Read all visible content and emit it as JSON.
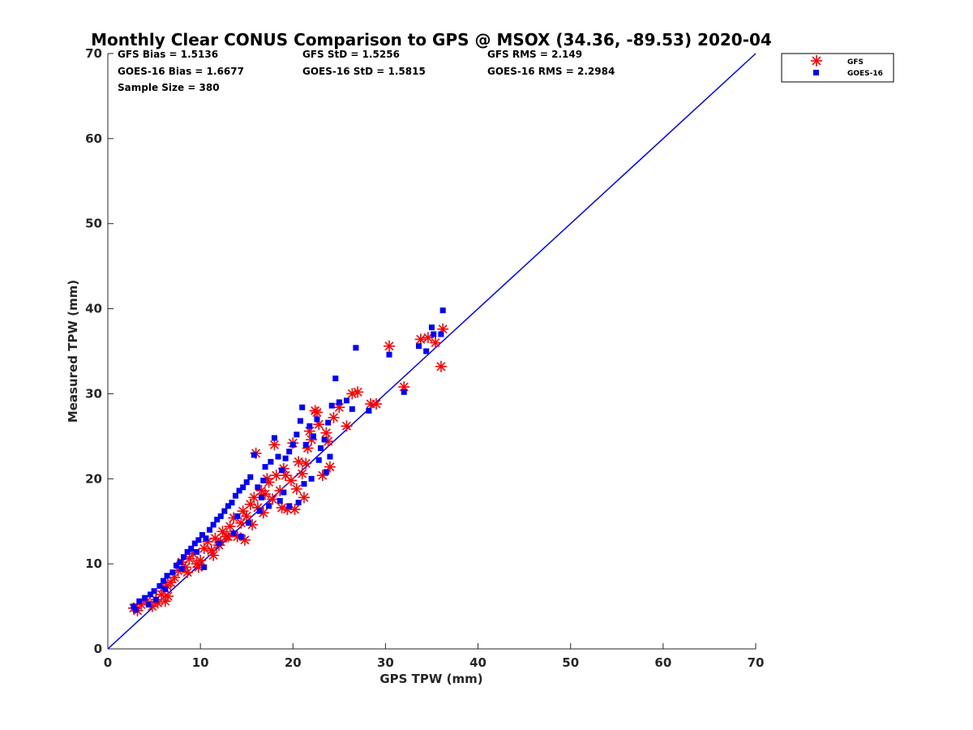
{
  "chart_data": {
    "type": "scatter",
    "title": "Monthly Clear CONUS Comparison to GPS @ MSOX (34.36, -89.53) 2020-04",
    "xlabel": "GPS TPW (mm)",
    "ylabel": "Measured TPW (mm)",
    "xlim": [
      0,
      70
    ],
    "ylim": [
      0,
      70
    ],
    "xticks": [
      "0",
      "10",
      "20",
      "30",
      "40",
      "50",
      "60",
      "70"
    ],
    "yticks": [
      "0",
      "10",
      "20",
      "30",
      "40",
      "50",
      "60",
      "70"
    ],
    "grid": false,
    "legend_position": "top-right",
    "stats": [
      [
        "GFS Bias = 1.5136",
        "GFS StD = 1.5256",
        "GFS RMS = 2.149"
      ],
      [
        "GOES-16 Bias = 1.6677",
        "GOES-16 StD = 1.5815",
        "GOES-16 RMS = 2.2984"
      ],
      [
        "Sample Size = 380"
      ]
    ],
    "reference_line": {
      "x": [
        0,
        70
      ],
      "y": [
        0,
        70
      ],
      "color": "#0000ff"
    },
    "series": [
      {
        "name": "GFS",
        "marker": "asterisk",
        "color": "#ff0000",
        "points": [
          [
            2.8,
            4.8
          ],
          [
            3.2,
            4.5
          ],
          [
            3.6,
            5.2
          ],
          [
            4.2,
            5.6
          ],
          [
            4.8,
            5.0
          ],
          [
            5.2,
            5.8
          ],
          [
            5.8,
            6.4
          ],
          [
            6.2,
            5.6
          ],
          [
            6.5,
            6.2
          ],
          [
            6.0,
            7.2
          ],
          [
            6.8,
            7.8
          ],
          [
            7.2,
            8.4
          ],
          [
            7.6,
            9.2
          ],
          [
            8.0,
            10.2
          ],
          [
            8.4,
            9.6
          ],
          [
            8.8,
            10.6
          ],
          [
            9.2,
            11.2
          ],
          [
            9.6,
            10.0
          ],
          [
            10.0,
            10.4
          ],
          [
            10.4,
            11.8
          ],
          [
            10.8,
            12.6
          ],
          [
            11.2,
            11.6
          ],
          [
            11.6,
            13.0
          ],
          [
            12.0,
            12.2
          ],
          [
            12.4,
            13.8
          ],
          [
            12.8,
            13.2
          ],
          [
            13.2,
            14.4
          ],
          [
            13.6,
            15.4
          ],
          [
            14.0,
            13.2
          ],
          [
            14.4,
            14.8
          ],
          [
            14.6,
            16.2
          ],
          [
            15.0,
            15.6
          ],
          [
            15.4,
            17.0
          ],
          [
            15.8,
            17.8
          ],
          [
            16.2,
            16.6
          ],
          [
            16.6,
            18.6
          ],
          [
            17.0,
            18.2
          ],
          [
            17.4,
            19.6
          ],
          [
            17.8,
            17.6
          ],
          [
            18.2,
            20.4
          ],
          [
            18.6,
            18.6
          ],
          [
            19.0,
            21.2
          ],
          [
            19.4,
            16.4
          ],
          [
            19.8,
            19.8
          ],
          [
            20.2,
            16.4
          ],
          [
            20.6,
            22.0
          ],
          [
            21.0,
            20.6
          ],
          [
            21.2,
            17.8
          ],
          [
            21.6,
            23.6
          ],
          [
            22.0,
            24.6
          ],
          [
            22.4,
            28.0
          ],
          [
            22.8,
            26.4
          ],
          [
            23.2,
            20.4
          ],
          [
            23.6,
            25.4
          ],
          [
            24.0,
            21.4
          ],
          [
            24.4,
            27.2
          ],
          [
            25.0,
            28.4
          ],
          [
            25.8,
            26.2
          ],
          [
            26.4,
            30.0
          ],
          [
            27.0,
            30.2
          ],
          [
            28.4,
            28.8
          ],
          [
            29.0,
            28.8
          ],
          [
            30.4,
            35.6
          ],
          [
            32.0,
            30.8
          ],
          [
            33.8,
            36.4
          ],
          [
            34.6,
            36.6
          ],
          [
            35.4,
            36.0
          ],
          [
            36.2,
            37.6
          ],
          [
            36.0,
            33.2
          ],
          [
            16.0,
            23.0
          ],
          [
            18.0,
            24.0
          ],
          [
            20.0,
            24.2
          ],
          [
            21.8,
            25.6
          ],
          [
            22.6,
            27.8
          ],
          [
            14.8,
            12.8
          ],
          [
            13.0,
            13.2
          ],
          [
            12.2,
            12.6
          ],
          [
            11.4,
            11.0
          ],
          [
            9.8,
            9.6
          ],
          [
            8.6,
            9.0
          ],
          [
            15.6,
            14.6
          ],
          [
            16.8,
            16.0
          ],
          [
            17.2,
            20.0
          ],
          [
            19.2,
            20.4
          ],
          [
            21.4,
            21.8
          ],
          [
            23.8,
            24.4
          ],
          [
            20.4,
            18.8
          ],
          [
            18.8,
            16.6
          ],
          [
            6.4,
            7.4
          ],
          [
            5.4,
            5.4
          ]
        ]
      },
      {
        "name": "GOES-16",
        "marker": "square",
        "color": "#0000ff",
        "points": [
          [
            2.8,
            5.0
          ],
          [
            3.4,
            5.6
          ],
          [
            4.0,
            6.0
          ],
          [
            4.6,
            6.4
          ],
          [
            5.0,
            6.8
          ],
          [
            5.6,
            7.4
          ],
          [
            6.0,
            8.0
          ],
          [
            6.4,
            8.6
          ],
          [
            7.0,
            9.0
          ],
          [
            7.4,
            9.8
          ],
          [
            7.8,
            10.2
          ],
          [
            8.2,
            10.8
          ],
          [
            8.6,
            11.4
          ],
          [
            9.0,
            11.8
          ],
          [
            9.4,
            12.4
          ],
          [
            9.8,
            12.8
          ],
          [
            10.2,
            13.4
          ],
          [
            10.6,
            13.0
          ],
          [
            11.0,
            14.0
          ],
          [
            11.4,
            14.6
          ],
          [
            11.8,
            15.2
          ],
          [
            12.2,
            15.6
          ],
          [
            12.6,
            16.2
          ],
          [
            13.0,
            16.8
          ],
          [
            13.4,
            17.2
          ],
          [
            13.8,
            18.0
          ],
          [
            14.2,
            18.6
          ],
          [
            14.6,
            19.0
          ],
          [
            15.0,
            19.6
          ],
          [
            15.4,
            20.2
          ],
          [
            15.8,
            22.8
          ],
          [
            16.2,
            19.0
          ],
          [
            16.6,
            17.8
          ],
          [
            17.0,
            21.4
          ],
          [
            17.6,
            22.0
          ],
          [
            18.0,
            24.8
          ],
          [
            18.4,
            22.6
          ],
          [
            18.8,
            21.0
          ],
          [
            19.2,
            22.4
          ],
          [
            19.6,
            23.2
          ],
          [
            20.0,
            24.0
          ],
          [
            20.4,
            25.2
          ],
          [
            20.8,
            26.8
          ],
          [
            21.0,
            28.4
          ],
          [
            21.4,
            24.0
          ],
          [
            21.8,
            26.2
          ],
          [
            22.2,
            25.0
          ],
          [
            22.6,
            27.0
          ],
          [
            23.0,
            23.6
          ],
          [
            23.4,
            24.6
          ],
          [
            23.8,
            26.6
          ],
          [
            24.2,
            28.6
          ],
          [
            24.6,
            31.8
          ],
          [
            25.0,
            29.0
          ],
          [
            25.8,
            29.2
          ],
          [
            26.4,
            28.2
          ],
          [
            26.8,
            35.4
          ],
          [
            28.2,
            28.0
          ],
          [
            30.4,
            34.6
          ],
          [
            32.0,
            30.2
          ],
          [
            33.6,
            35.6
          ],
          [
            34.4,
            35.0
          ],
          [
            35.0,
            37.8
          ],
          [
            35.2,
            37.0
          ],
          [
            36.2,
            39.8
          ],
          [
            36.0,
            37.0
          ],
          [
            10.4,
            9.6
          ],
          [
            12.0,
            12.4
          ],
          [
            13.6,
            13.6
          ],
          [
            14.4,
            13.2
          ],
          [
            15.2,
            14.8
          ],
          [
            16.4,
            16.2
          ],
          [
            17.4,
            16.8
          ],
          [
            18.6,
            17.4
          ],
          [
            19.6,
            16.8
          ],
          [
            20.6,
            17.2
          ],
          [
            22.0,
            20.0
          ],
          [
            23.6,
            20.8
          ],
          [
            24.0,
            22.6
          ],
          [
            9.6,
            11.4
          ],
          [
            8.0,
            9.4
          ],
          [
            6.2,
            7.0
          ],
          [
            5.2,
            5.8
          ],
          [
            4.4,
            5.2
          ],
          [
            3.0,
            4.6
          ],
          [
            14.0,
            15.6
          ],
          [
            16.8,
            19.8
          ],
          [
            19.0,
            18.4
          ],
          [
            21.2,
            19.4
          ],
          [
            22.8,
            22.2
          ]
        ]
      }
    ]
  }
}
